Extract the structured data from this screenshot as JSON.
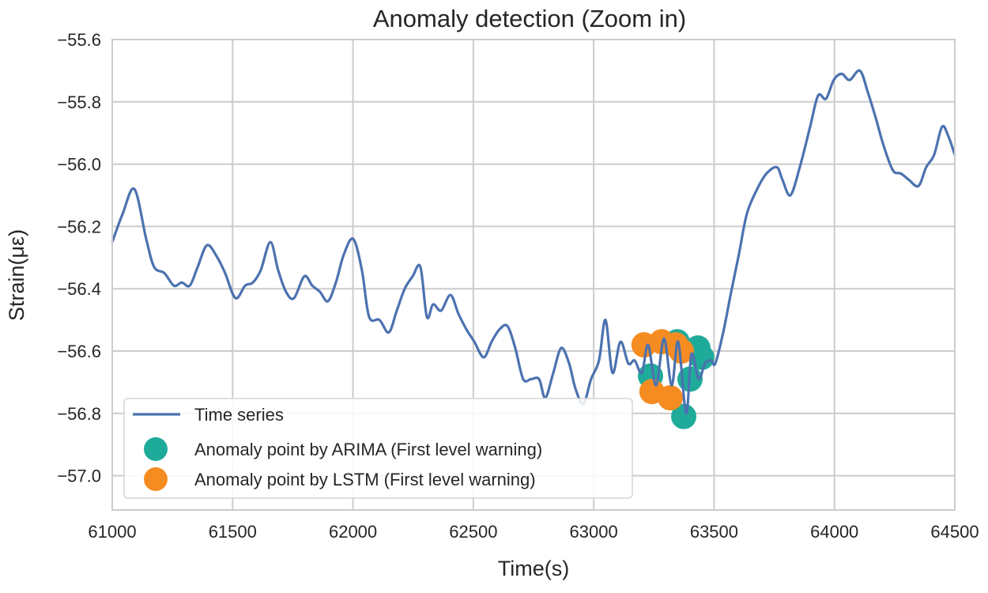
{
  "chart_data": {
    "type": "line",
    "title": "Anomaly detection (Zoom in)",
    "xlabel": "Time(s)",
    "ylabel": "Strain(με)",
    "xlim": [
      61000,
      64500
    ],
    "ylim": [
      -57.11,
      -55.6
    ],
    "xticks": [
      61000,
      61500,
      62000,
      62500,
      63000,
      63500,
      64000,
      64500
    ],
    "yticks": [
      -55.6,
      -55.8,
      -56.0,
      -56.2,
      -56.4,
      -56.6,
      -56.8,
      -57.0
    ],
    "ytick_labels": [
      "−55.6",
      "−55.8",
      "−56.0",
      "−56.2",
      "−56.4",
      "−56.6",
      "−56.8",
      "−57.0"
    ],
    "grid": true,
    "legend_position": "bottom-left",
    "series": [
      {
        "name": "Time series",
        "kind": "line",
        "color": "#4c72b0",
        "x": [
          61000,
          61043,
          61092,
          61141,
          61174,
          61217,
          61256,
          61289,
          61322,
          61355,
          61394,
          61437,
          61469,
          61512,
          61552,
          61584,
          61617,
          61657,
          61689,
          61722,
          61755,
          61798,
          61831,
          61863,
          61896,
          61929,
          61962,
          62001,
          62037,
          62067,
          62110,
          62149,
          62182,
          62215,
          62248,
          62280,
          62307,
          62333,
          62366,
          62405,
          62438,
          62471,
          62504,
          62543,
          62576,
          62609,
          62642,
          62674,
          62707,
          62740,
          62773,
          62799,
          62832,
          62865,
          62898,
          62924,
          62957,
          62989,
          63022,
          63049,
          63078,
          63111,
          63144,
          63170,
          63200,
          63226,
          63259,
          63292,
          63324,
          63351,
          63384,
          63406,
          63436,
          63462,
          63488,
          63505,
          63538,
          63571,
          63603,
          63636,
          63679,
          63718,
          63761,
          63784,
          63817,
          63856,
          63899,
          63932,
          63965,
          63997,
          64030,
          64063,
          64106,
          64139,
          64171,
          64204,
          64243,
          64276,
          64309,
          64349,
          64381,
          64414,
          64447,
          64473,
          64500
        ],
        "y": [
          -56.25,
          -56.16,
          -56.08,
          -56.24,
          -56.33,
          -56.35,
          -56.39,
          -56.38,
          -56.39,
          -56.33,
          -56.26,
          -56.3,
          -56.35,
          -56.43,
          -56.39,
          -56.38,
          -56.34,
          -56.25,
          -56.34,
          -56.41,
          -56.43,
          -56.36,
          -56.39,
          -56.41,
          -56.44,
          -56.38,
          -56.29,
          -56.24,
          -56.34,
          -56.49,
          -56.5,
          -56.54,
          -56.47,
          -56.4,
          -56.36,
          -56.33,
          -56.49,
          -56.45,
          -56.47,
          -56.42,
          -56.48,
          -56.53,
          -56.57,
          -56.62,
          -56.57,
          -56.53,
          -56.52,
          -56.59,
          -56.69,
          -56.69,
          -56.69,
          -56.75,
          -56.67,
          -56.59,
          -56.64,
          -56.72,
          -56.77,
          -56.69,
          -56.63,
          -56.5,
          -56.67,
          -56.57,
          -56.64,
          -56.63,
          -56.67,
          -56.58,
          -56.71,
          -56.56,
          -56.71,
          -56.57,
          -56.8,
          -56.61,
          -56.69,
          -56.64,
          -56.63,
          -56.64,
          -56.54,
          -56.41,
          -56.29,
          -56.16,
          -56.08,
          -56.03,
          -56.01,
          -56.05,
          -56.1,
          -56.01,
          -55.88,
          -55.78,
          -55.79,
          -55.73,
          -55.71,
          -55.73,
          -55.7,
          -55.77,
          -55.85,
          -55.94,
          -56.02,
          -56.03,
          -56.05,
          -56.07,
          -56.01,
          -55.97,
          -55.88,
          -55.91,
          -55.97
        ]
      },
      {
        "name": "Anomaly point by ARIMA (First level warning)",
        "kind": "scatter",
        "color": "#1fab9a",
        "x": [
          63347,
          63433,
          63449,
          63400,
          63236,
          63374
        ],
        "y": [
          -56.57,
          -56.59,
          -56.62,
          -56.69,
          -56.68,
          -56.81
        ]
      },
      {
        "name": "Anomaly point by LSTM (First level warning)",
        "kind": "scatter",
        "color": "#f58c22",
        "x": [
          63209,
          63282,
          63341,
          63364,
          63242,
          63318
        ],
        "y": [
          -56.58,
          -56.57,
          -56.58,
          -56.6,
          -56.73,
          -56.75
        ]
      }
    ]
  }
}
